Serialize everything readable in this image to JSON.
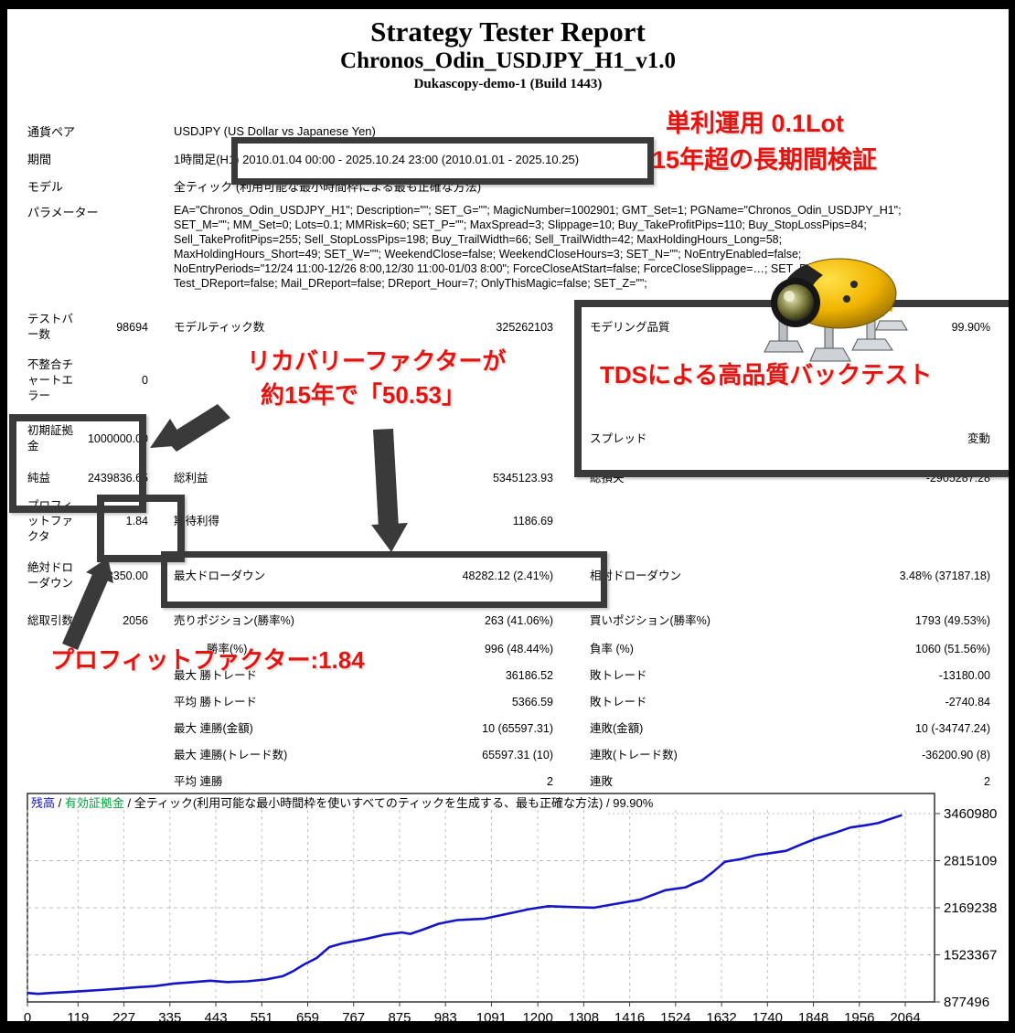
{
  "header": {
    "title": "Strategy Tester Report",
    "subtitle": "Chronos_Odin_USDJPY_H1_v1.0",
    "server_build": "Dukascopy-demo-1 (Build 1443)"
  },
  "info": {
    "symbol_label": "通貨ペア",
    "symbol_value": "USDJPY (US Dollar vs Japanese Yen)",
    "period_label": "期間",
    "period_value": "1時間足(H1) 2010.01.04 00:00 - 2025.10.24 23:00 (2010.01.01 - 2025.10.25)",
    "model_label": "モデル",
    "model_value": "全ティック (利用可能な最小時間枠による最も正確な方法)",
    "params_label": "パラメーター",
    "params_text": "EA=\"Chronos_Odin_USDJPY_H1\"; Description=\"\"; SET_G=\"\"; MagicNumber=1002901; GMT_Set=1; PGName=\"Chronos_Odin_USDJPY_H1\";\nSET_M=\"\"; MM_Set=0; Lots=0.1; MMRisk=60; SET_P=\"\"; MaxSpread=3; Slippage=10; Buy_TakeProfitPips=110; Buy_StopLossPips=84;\nSell_TakeProfitPips=255; Sell_StopLossPips=198; Buy_TrailWidth=66; Sell_TrailWidth=42; MaxHoldingHours_Long=58;\nMaxHoldingHours_Short=49; SET_W=\"\"; WeekendClose=false; WeekendCloseHours=3; SET_N=\"\"; NoEntryEnabled=false;\nNoEntryPeriods=\"12/24 11:00-12/26 8:00,12/30 11:00-01/03 8:00\"; ForceCloseAtStart=false; ForceCloseSlippage=…; SET_D=\"\";\nTest_DReport=false; Mail_DReport=false; DReport_Hour=7; OnlyThisMagic=false; SET_Z=\"\";"
  },
  "stats": {
    "rows": [
      [
        "テストバー数",
        "98694",
        "モデルティック数",
        "325262103",
        "モデリング品質",
        "99.90%"
      ],
      [
        "不整合チャートエラー",
        "0",
        "",
        "",
        "",
        ""
      ],
      [
        "初期証拠金",
        "1000000.00",
        "",
        "",
        "スプレッド",
        "変動"
      ],
      [
        "純益",
        "2439836.65",
        "総利益",
        "5345123.93",
        "総損失",
        "-2905287.28"
      ],
      [
        "プロフィットファクタ",
        "1.84",
        "期待利得",
        "1186.69",
        "",
        ""
      ],
      [
        "絶対ドローダウン",
        "3350.00",
        "最大ドローダウン",
        "48282.12 (2.41%)",
        "相対ドローダウン",
        "3.48% (37187.18)"
      ],
      [
        "総取引数",
        "2056",
        "売りポジション(勝率%)",
        "263 (41.06%)",
        "買いポジション(勝率%)",
        "1793 (49.53%)"
      ],
      [
        "",
        "",
        "勝率(%)",
        "996 (48.44%)",
        "負率 (%)",
        "1060 (51.56%)"
      ],
      [
        "",
        "",
        "最大 勝トレード",
        "36186.52",
        "敗トレード",
        "-13180.00"
      ],
      [
        "",
        "",
        "平均 勝トレード",
        "5366.59",
        "敗トレード",
        "-2740.84"
      ],
      [
        "",
        "",
        "最大 連勝(金額)",
        "10 (65597.31)",
        "連敗(金額)",
        "10 (-34747.24)"
      ],
      [
        "",
        "",
        "最大 連勝(トレード数)",
        "65597.31 (10)",
        "連敗(トレード数)",
        "-36200.90 (8)"
      ],
      [
        "",
        "",
        "平均 連勝",
        "2",
        "連敗",
        "2"
      ]
    ]
  },
  "annotations": {
    "simple_interest": "単利運用 0.1Lot",
    "long_term": "15年超の長期間検証",
    "recovery_line1": "リカバリーファクターが",
    "recovery_line2": "約15年で「50.53」",
    "tds_quality": "TDSによる高品質バックテスト",
    "profit_factor": "プロフィットファクター:1.84"
  },
  "chart_data": {
    "type": "line",
    "legend": {
      "balance_label": "残高",
      "equity_label": "有効証拠金",
      "separator": " / ",
      "model_note": "全ティック(利用可能な最小時間枠を使いすべてのティックを生成する、最も正確な方法)",
      "quality": "99.90%"
    },
    "colors": {
      "balance": "#1515c8",
      "equity": "#00a43c",
      "grid": "#bdbdbd",
      "axis": "#3c3c3c"
    },
    "x_ticks": [
      0,
      119,
      227,
      335,
      443,
      551,
      659,
      767,
      875,
      983,
      1091,
      1200,
      1308,
      1416,
      1524,
      1632,
      1740,
      1848,
      1956,
      2064
    ],
    "y_ticks": [
      3460980,
      2815109,
      2169238,
      1523367,
      877496
    ],
    "xlim": [
      0,
      2133
    ],
    "ylim": [
      877496,
      3460980
    ],
    "grid": "dashed",
    "series": [
      {
        "name": "残高",
        "points": [
          [
            0,
            1000000
          ],
          [
            25,
            988000
          ],
          [
            55,
            1000000
          ],
          [
            90,
            1012000
          ],
          [
            130,
            1025000
          ],
          [
            170,
            1040000
          ],
          [
            215,
            1058000
          ],
          [
            258,
            1080000
          ],
          [
            300,
            1095000
          ],
          [
            344,
            1130000
          ],
          [
            390,
            1150000
          ],
          [
            430,
            1168000
          ],
          [
            470,
            1150000
          ],
          [
            516,
            1160000
          ],
          [
            560,
            1185000
          ],
          [
            600,
            1230000
          ],
          [
            625,
            1300000
          ],
          [
            650,
            1390000
          ],
          [
            680,
            1480000
          ],
          [
            710,
            1630000
          ],
          [
            740,
            1680000
          ],
          [
            795,
            1740000
          ],
          [
            840,
            1800000
          ],
          [
            880,
            1830000
          ],
          [
            900,
            1810000
          ],
          [
            930,
            1870000
          ],
          [
            967,
            1950000
          ],
          [
            1010,
            2000000
          ],
          [
            1075,
            2020000
          ],
          [
            1140,
            2100000
          ],
          [
            1180,
            2150000
          ],
          [
            1225,
            2190000
          ],
          [
            1270,
            2180000
          ],
          [
            1333,
            2170000
          ],
          [
            1380,
            2220000
          ],
          [
            1440,
            2280000
          ],
          [
            1500,
            2410000
          ],
          [
            1548,
            2450000
          ],
          [
            1570,
            2510000
          ],
          [
            1585,
            2540000
          ],
          [
            1610,
            2650000
          ],
          [
            1640,
            2800000
          ],
          [
            1680,
            2840000
          ],
          [
            1713,
            2890000
          ],
          [
            1750,
            2920000
          ],
          [
            1784,
            2950000
          ],
          [
            1820,
            3040000
          ],
          [
            1855,
            3120000
          ],
          [
            1900,
            3200000
          ],
          [
            1935,
            3270000
          ],
          [
            1970,
            3300000
          ],
          [
            2000,
            3330000
          ],
          [
            2030,
            3390000
          ],
          [
            2056,
            3440000
          ]
        ]
      }
    ]
  }
}
